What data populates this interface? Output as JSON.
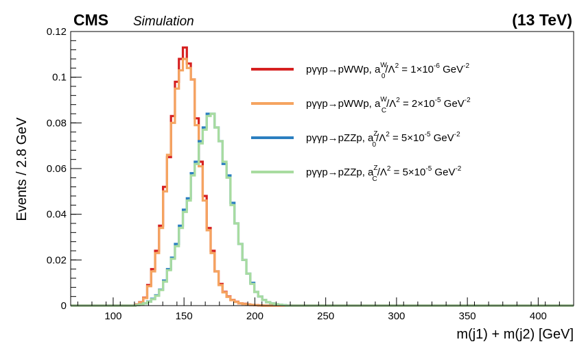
{
  "header": {
    "experiment": "CMS",
    "status": "Simulation",
    "energy": "(13 TeV)"
  },
  "chart_data": {
    "type": "line",
    "histogram": true,
    "xlabel": "m(j1) + m(j2) [GeV]",
    "ylabel": "Events / 2.8 GeV",
    "xlim": [
      70,
      425
    ],
    "ylim": [
      0,
      0.12
    ],
    "x_ticks": [
      "100",
      "150",
      "200",
      "250",
      "300",
      "350",
      "400"
    ],
    "y_ticks": [
      "0",
      "0.02",
      "0.04",
      "0.06",
      "0.08",
      "0.1",
      "0.12"
    ],
    "grid": false,
    "legend_position": "top-right",
    "bin_width": 2.8,
    "bins_start": 115.6,
    "series": [
      {
        "name": "pγγp→pWWp, a0W/Λ2 = 1×10-6 GeV-2",
        "legend": {
          "process": "pγγp→pWWp, a",
          "sub": "0",
          "sup": "W",
          "rest": "/Λ",
          "sup2": "2",
          "eq": " = 1×10",
          "exp": "-6",
          "unit": " GeV",
          "unit_exp": "-2"
        },
        "color": "#d62020",
        "values": [
          0.0005,
          0.0015,
          0.0035,
          0.009,
          0.016,
          0.024,
          0.035,
          0.052,
          0.065,
          0.083,
          0.098,
          0.108,
          0.113,
          0.106,
          0.099,
          0.082,
          0.063,
          0.048,
          0.034,
          0.024,
          0.015,
          0.0095,
          0.006,
          0.004,
          0.0025,
          0.0017,
          0.001,
          0.0008,
          0.0005,
          0.0003,
          0.0002,
          0.0001
        ]
      },
      {
        "name": "pγγp→pWWp, aCW/Λ2 = 2×10-5 GeV-2",
        "legend": {
          "process": "pγγp→pWWp, a",
          "sub": "C",
          "sup": "W",
          "rest": "/Λ",
          "sup2": "2",
          "eq": " = 2×10",
          "exp": "-5",
          "unit": " GeV",
          "unit_exp": "-2"
        },
        "color": "#f5a460",
        "values": [
          0.0005,
          0.0014,
          0.0033,
          0.0085,
          0.015,
          0.023,
          0.034,
          0.05,
          0.066,
          0.08,
          0.095,
          0.103,
          0.108,
          0.104,
          0.099,
          0.079,
          0.061,
          0.046,
          0.033,
          0.023,
          0.015,
          0.009,
          0.0058,
          0.0038,
          0.0024,
          0.0016,
          0.001,
          0.0007,
          0.0005,
          0.0003,
          0.0002,
          0.0001
        ]
      },
      {
        "name": "pγγp→pZZp, a0Z/Λ2 = 5×10-5 GeV-2",
        "legend": {
          "process": "pγγp→pZZp, a",
          "sub": "0",
          "sup": "Z",
          "rest": "/Λ",
          "sup2": "2",
          "eq": " = 5×10",
          "exp": "-5",
          "unit": " GeV",
          "unit_exp": "-2"
        },
        "color": "#2b7fc0",
        "values": [
          0.0002,
          0.0005,
          0.001,
          0.0018,
          0.003,
          0.0045,
          0.007,
          0.011,
          0.016,
          0.021,
          0.027,
          0.035,
          0.042,
          0.047,
          0.058,
          0.063,
          0.072,
          0.078,
          0.084,
          0.084,
          0.078,
          0.072,
          0.062,
          0.057,
          0.045,
          0.036,
          0.027,
          0.02,
          0.014,
          0.01,
          0.006,
          0.004,
          0.0025,
          0.0015,
          0.001,
          0.0006,
          0.0004,
          0.0002
        ]
      },
      {
        "name": "pγγp→pZZp, aCZ/Λ2 = 5×10-5 GeV-2",
        "legend": {
          "process": "pγγp→pZZp, a",
          "sub": "C",
          "sup": "Z",
          "rest": "/Λ",
          "sup2": "2",
          "eq": " = 5×10",
          "exp": "-5",
          "unit": " GeV",
          "unit_exp": "-2"
        },
        "color": "#a8dca0",
        "values": [
          0.0002,
          0.0005,
          0.001,
          0.0017,
          0.0028,
          0.0043,
          0.0068,
          0.0105,
          0.0155,
          0.0205,
          0.026,
          0.034,
          0.041,
          0.046,
          0.057,
          0.062,
          0.071,
          0.077,
          0.083,
          0.084,
          0.078,
          0.072,
          0.063,
          0.056,
          0.044,
          0.036,
          0.027,
          0.02,
          0.014,
          0.0095,
          0.006,
          0.004,
          0.0025,
          0.0015,
          0.001,
          0.0006,
          0.0004,
          0.0002
        ]
      }
    ]
  }
}
